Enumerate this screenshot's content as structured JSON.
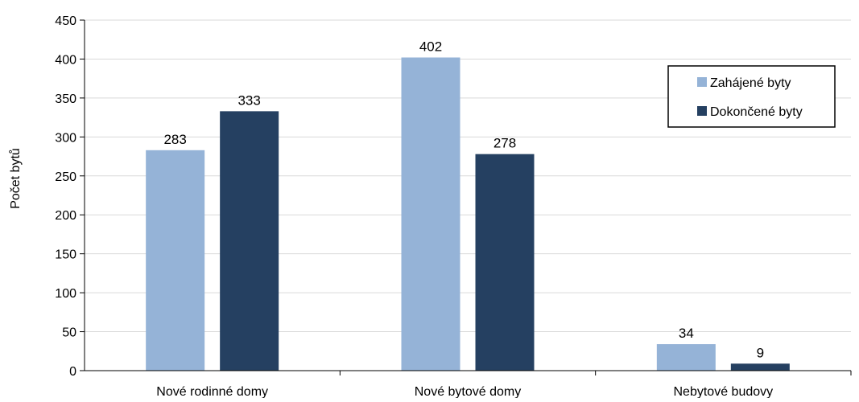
{
  "chart_data": {
    "type": "bar",
    "title": "",
    "xlabel": "",
    "ylabel": "Počet bytů",
    "ylim": [
      0,
      450
    ],
    "yticks": [
      0,
      50,
      100,
      150,
      200,
      250,
      300,
      350,
      400,
      450
    ],
    "grid": true,
    "legend_position": "top-right",
    "categories": [
      "Nové rodinné domy",
      "Nové bytové domy",
      "Nebytové budovy"
    ],
    "series": [
      {
        "name": "Zahájené byty",
        "color": "#95B3D7",
        "values": [
          283,
          402,
          34
        ]
      },
      {
        "name": "Dokončené byty",
        "color": "#254061",
        "values": [
          333,
          278,
          9
        ]
      }
    ]
  }
}
